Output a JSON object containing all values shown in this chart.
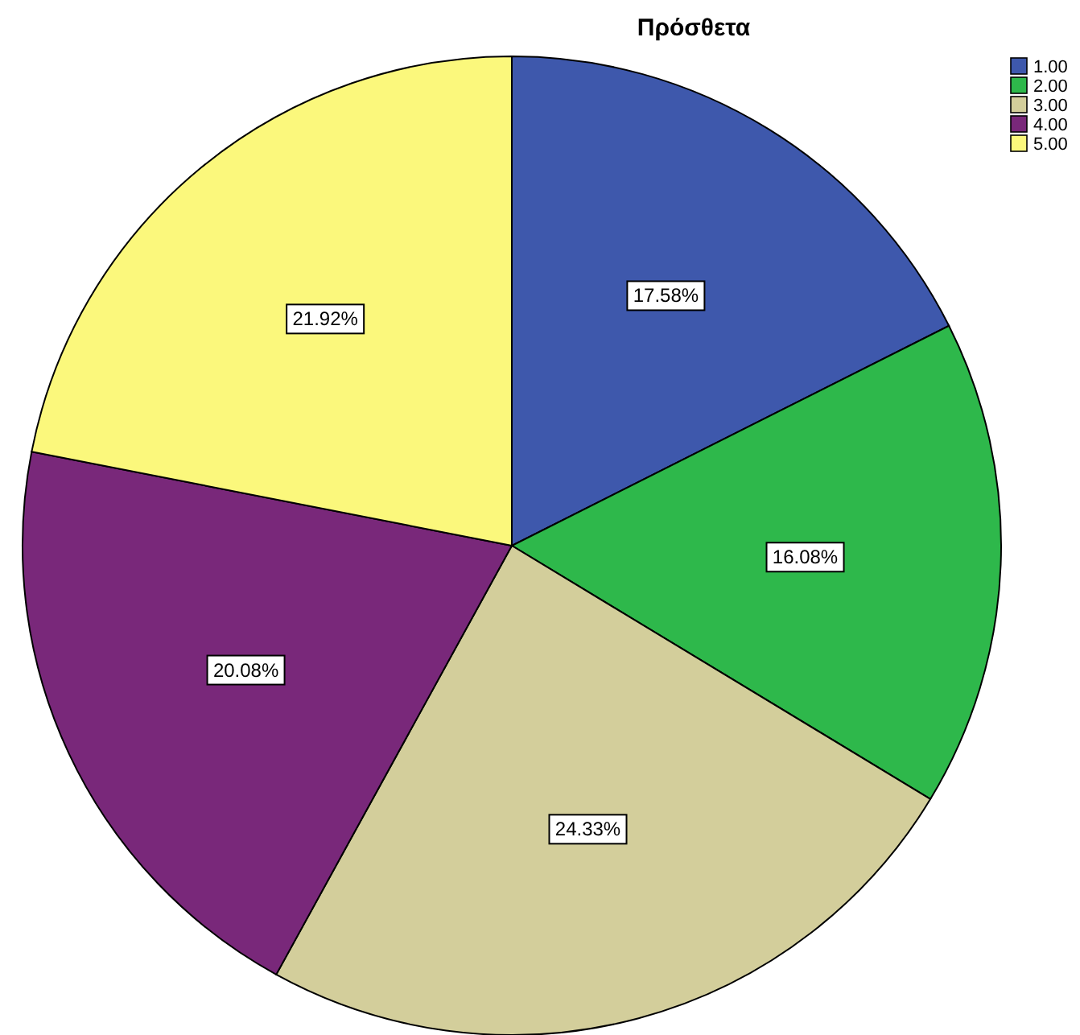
{
  "chart_data": {
    "type": "pie",
    "title": "Πρόσθετα",
    "categories": [
      "1.00",
      "2.00",
      "3.00",
      "4.00",
      "5.00"
    ],
    "values": [
      17.58,
      16.08,
      24.33,
      20.08,
      21.92
    ],
    "value_labels": [
      "17.58%",
      "16.08%",
      "24.33%",
      "20.08%",
      "21.92%"
    ],
    "colors": [
      "#3e58ac",
      "#2eb84b",
      "#d3ce9b",
      "#79287a",
      "#fbf87c"
    ],
    "legend": "top right"
  }
}
